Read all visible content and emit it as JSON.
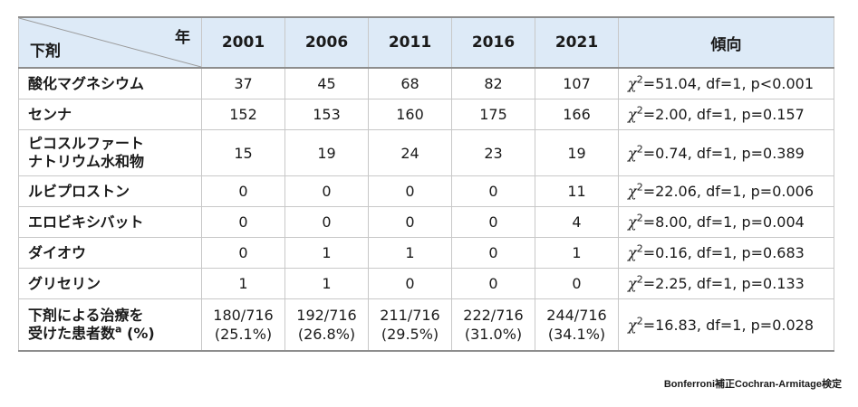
{
  "header": {
    "year_label": "年",
    "drug_label": "下剤",
    "years": [
      "2001",
      "2006",
      "2011",
      "2016",
      "2021"
    ],
    "trend_label": "傾向"
  },
  "rows": [
    {
      "drug": "酸化マグネシウム",
      "drug_line2": "",
      "values": [
        "37",
        "45",
        "68",
        "82",
        "107"
      ],
      "chi_symbol": "χ",
      "chi_sup": "2",
      "trend": "=51.04, df=1, p<0.001"
    },
    {
      "drug": "センナ",
      "drug_line2": "",
      "values": [
        "152",
        "153",
        "160",
        "175",
        "166"
      ],
      "chi_symbol": "χ",
      "chi_sup": "2",
      "trend": "=2.00, df=1, p=0.157"
    },
    {
      "drug": "ピコスルファート",
      "drug_line2": "ナトリウム水和物",
      "values": [
        "15",
        "19",
        "24",
        "23",
        "19"
      ],
      "chi_symbol": "χ",
      "chi_sup": "2",
      "trend": "=0.74, df=1, p=0.389"
    },
    {
      "drug": "ルビプロストン",
      "drug_line2": "",
      "values": [
        "0",
        "0",
        "0",
        "0",
        "11"
      ],
      "chi_symbol": "χ",
      "chi_sup": "2",
      "trend": "=22.06, df=1, p=0.006"
    },
    {
      "drug": "エロビキシバット",
      "drug_line2": "",
      "values": [
        "0",
        "0",
        "0",
        "0",
        "4"
      ],
      "chi_symbol": "χ",
      "chi_sup": "2",
      "trend": "=8.00, df=1, p=0.004"
    },
    {
      "drug": "ダイオウ",
      "drug_line2": "",
      "values": [
        "0",
        "1",
        "1",
        "0",
        "1"
      ],
      "chi_symbol": "χ",
      "chi_sup": "2",
      "trend": "=0.16, df=1, p=0.683"
    },
    {
      "drug": "グリセリン",
      "drug_line2": "",
      "values": [
        "1",
        "1",
        "0",
        "0",
        "0"
      ],
      "chi_symbol": "χ",
      "chi_sup": "2",
      "trend": "=2.25, df=1, p=0.133"
    }
  ],
  "total_row": {
    "drug_line1": "下剤による治療を",
    "drug_line2": "受けた患者数",
    "drug_sup": "a",
    "drug_suffix": " (%)",
    "fractions": [
      "180/716",
      "192/716",
      "211/716",
      "222/716",
      "244/716"
    ],
    "percents": [
      "(25.1%)",
      "(26.8%)",
      "(29.5%)",
      "(31.0%)",
      "(34.1%)"
    ],
    "chi_symbol": "χ",
    "chi_sup": "2",
    "trend": "=16.83, df=1, p=0.028"
  },
  "footnote": "Bonferroni補正Cochran-Armitage検定",
  "colors": {
    "header_bg": "#ddeaf7",
    "rule": "#8d8d8d",
    "grid": "#c8c8c8"
  }
}
